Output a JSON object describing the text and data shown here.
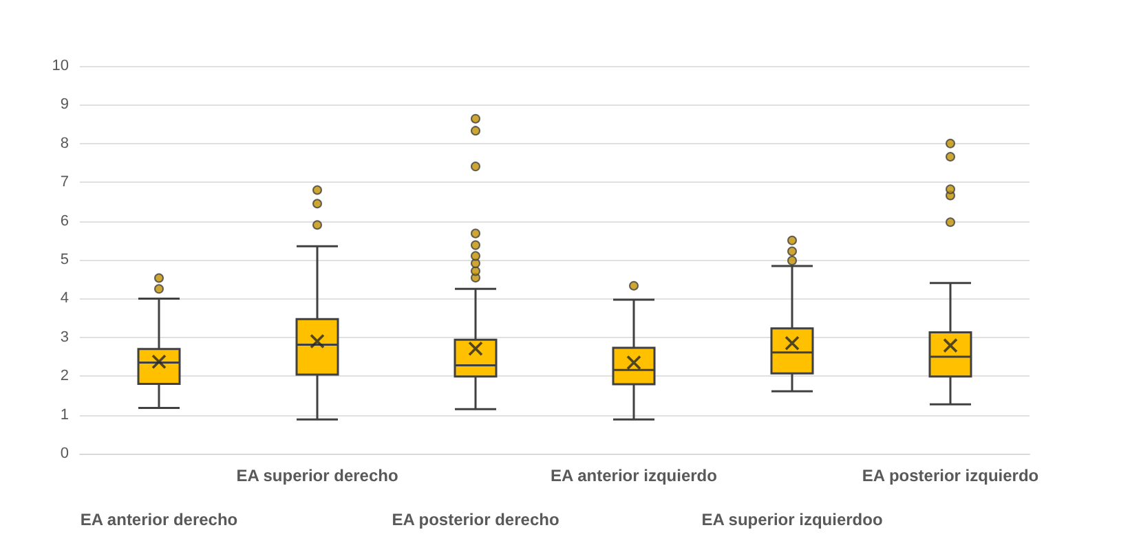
{
  "chart_data": {
    "type": "box",
    "categories": [
      "EA anterior derecho",
      "EA superior derecho",
      "EA posterior derecho",
      "EA anterior izquierdo",
      "EA superior izquierdoo",
      "EA posterior izquierdo"
    ],
    "boxes": [
      {
        "low": 1.18,
        "q1": 1.8,
        "median": 2.35,
        "q3": 2.7,
        "high": 4.0,
        "mean": 2.37,
        "outliers": [
          4.25,
          4.53
        ]
      },
      {
        "low": 0.88,
        "q1": 2.04,
        "median": 2.81,
        "q3": 3.47,
        "high": 5.35,
        "mean": 2.9,
        "outliers": [
          5.9,
          6.45,
          6.8
        ]
      },
      {
        "low": 1.15,
        "q1": 1.99,
        "median": 2.28,
        "q3": 2.94,
        "high": 4.25,
        "mean": 2.71,
        "outliers": [
          4.54,
          4.71,
          4.91,
          5.1,
          5.38,
          5.68,
          7.41,
          8.33,
          8.64
        ]
      },
      {
        "low": 0.88,
        "q1": 1.79,
        "median": 2.16,
        "q3": 2.73,
        "high": 3.97,
        "mean": 2.35,
        "outliers": [
          4.33
        ]
      },
      {
        "low": 1.61,
        "q1": 2.07,
        "median": 2.61,
        "q3": 3.23,
        "high": 4.84,
        "mean": 2.85,
        "outliers": [
          4.98,
          5.22,
          5.5
        ]
      },
      {
        "low": 1.27,
        "q1": 1.99,
        "median": 2.5,
        "q3": 3.13,
        "high": 4.4,
        "mean": 2.79,
        "outliers": [
          5.97,
          6.66,
          6.82,
          7.66,
          8.0
        ]
      }
    ],
    "color": "#ffc000",
    "ylim": [
      0,
      10
    ],
    "yticks": [
      0,
      1,
      2,
      3,
      4,
      5,
      6,
      7,
      8,
      9,
      10
    ],
    "grid": "y"
  }
}
